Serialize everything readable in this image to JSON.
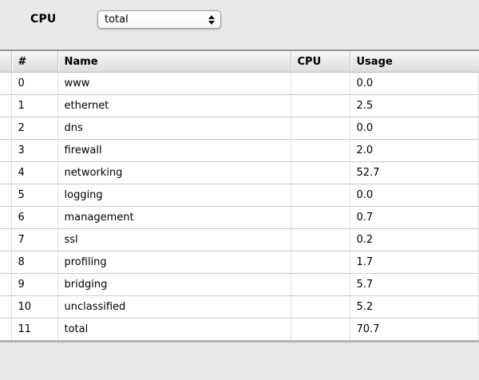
{
  "toolbar": {
    "cpu_label": "CPU",
    "select": {
      "value": "total",
      "arrows_icon": "up-down-stepper-arrows"
    }
  },
  "table": {
    "columns": [
      {
        "label": ""
      },
      {
        "label": "#"
      },
      {
        "label": "Name"
      },
      {
        "label": "CPU"
      },
      {
        "label": "Usage"
      }
    ],
    "rows": [
      {
        "num": "0",
        "name": "www",
        "cpu": "",
        "usage": "0.0"
      },
      {
        "num": "1",
        "name": "ethernet",
        "cpu": "",
        "usage": "2.5"
      },
      {
        "num": "2",
        "name": "dns",
        "cpu": "",
        "usage": "0.0"
      },
      {
        "num": "3",
        "name": "firewall",
        "cpu": "",
        "usage": "2.0"
      },
      {
        "num": "4",
        "name": "networking",
        "cpu": "",
        "usage": "52.7"
      },
      {
        "num": "5",
        "name": "logging",
        "cpu": "",
        "usage": "0.0"
      },
      {
        "num": "6",
        "name": "management",
        "cpu": "",
        "usage": "0.7"
      },
      {
        "num": "7",
        "name": "ssl",
        "cpu": "",
        "usage": "0.2"
      },
      {
        "num": "8",
        "name": "profiling",
        "cpu": "",
        "usage": "1.7"
      },
      {
        "num": "9",
        "name": "bridging",
        "cpu": "",
        "usage": "5.7"
      },
      {
        "num": "10",
        "name": "unclassified",
        "cpu": "",
        "usage": "5.2"
      },
      {
        "num": "11",
        "name": "total",
        "cpu": "",
        "usage": "70.7"
      }
    ]
  },
  "colors": {
    "page_background": "#e9e9e9",
    "header_gradient_top": "#f7f7f7",
    "header_gradient_bottom": "#dcdcdc",
    "header_top_border": "#8f8f8f",
    "table_bottom_border": "#b2b2b2",
    "row_separator": "#c9c9c9",
    "cell_background": "#ffffff",
    "text": "#000000"
  }
}
